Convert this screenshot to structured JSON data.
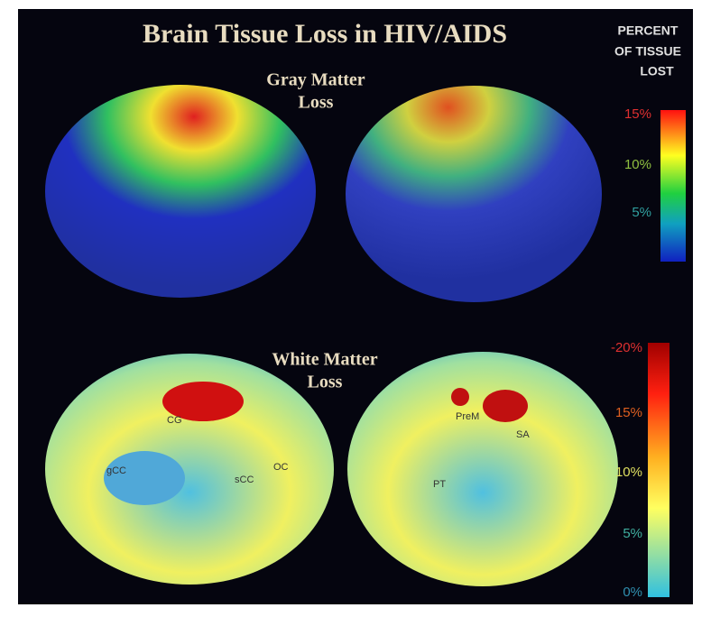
{
  "title": "Brain Tissue Loss in HIV/AIDS",
  "legend_heading": [
    "PERCENT",
    "OF TISSUE",
    "LOST"
  ],
  "gray_matter": {
    "label": [
      "Gray Matter",
      "Loss"
    ],
    "scale": [
      "15%",
      "10%",
      "5%"
    ]
  },
  "white_matter": {
    "label": [
      "White Matter",
      "Loss"
    ],
    "scale": [
      "-20%",
      "15%",
      "10%",
      "5%",
      "0%"
    ],
    "regions": [
      "CG",
      "gCC",
      "sCC",
      "OC",
      "PreM",
      "SA",
      "PT"
    ]
  }
}
